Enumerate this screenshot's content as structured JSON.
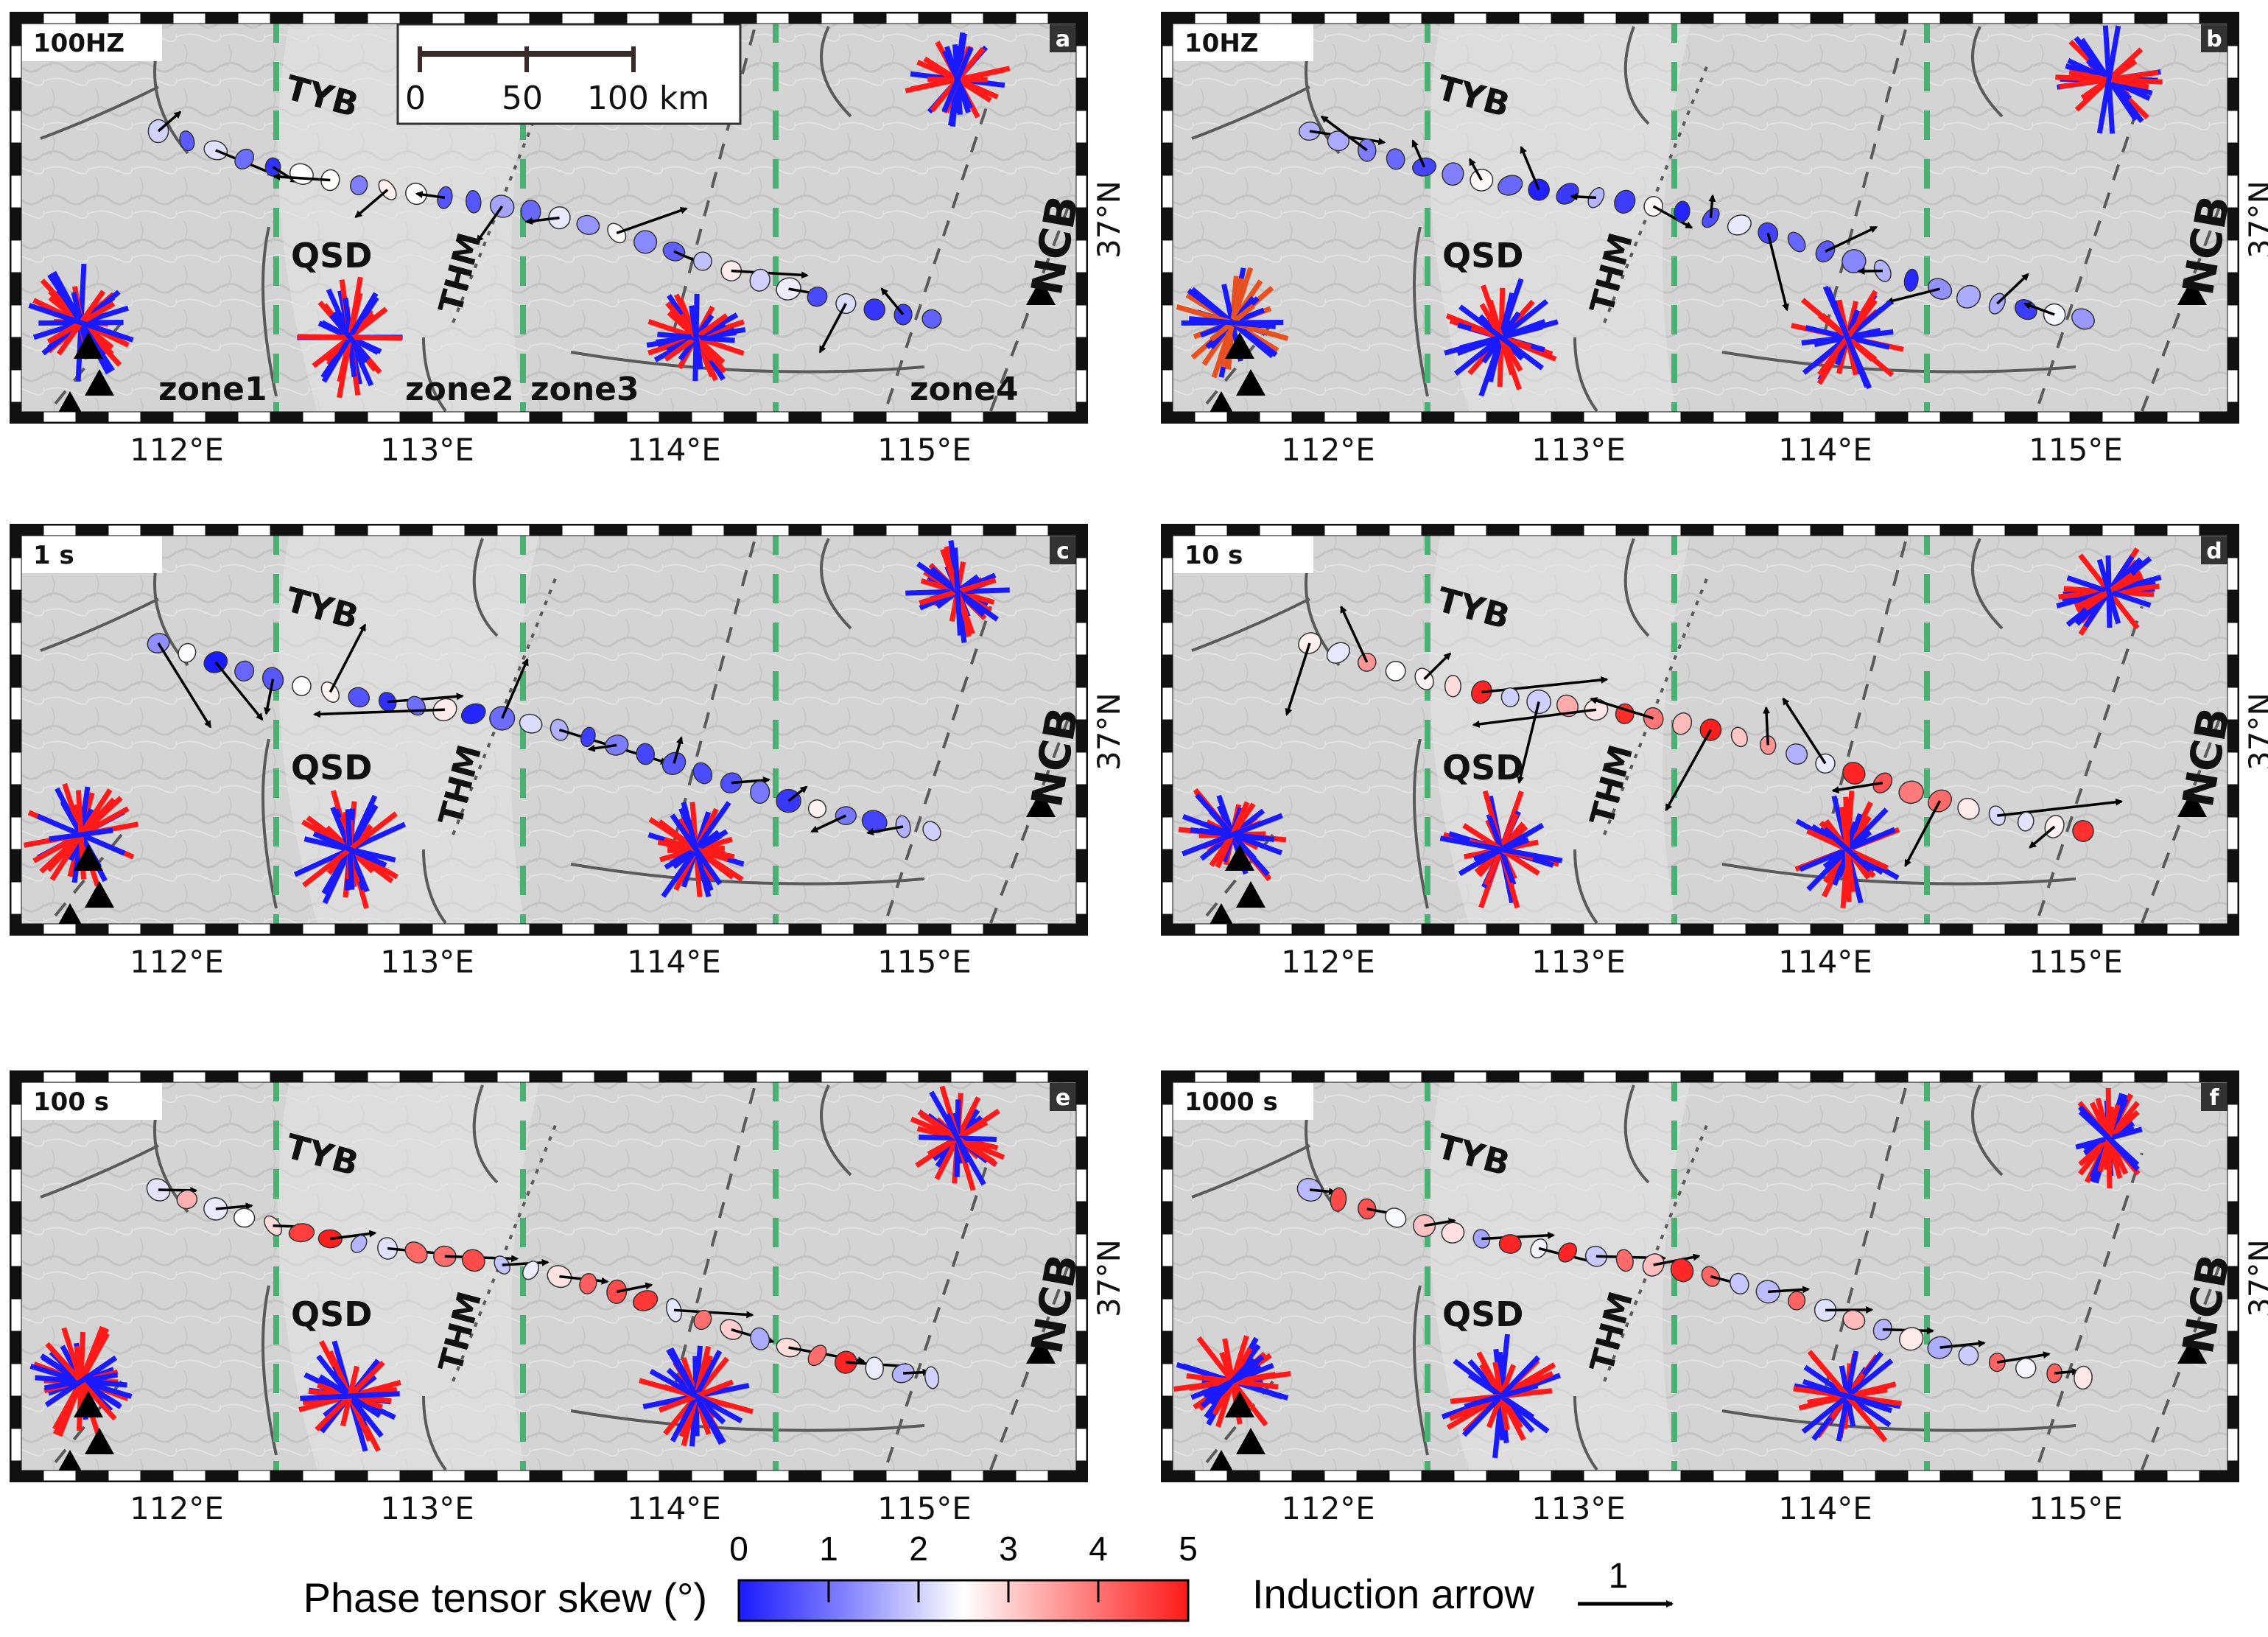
{
  "colors": {
    "map_bg": "#d6d6d6",
    "zone_line": "#4caf74",
    "fault": "#5a5a5a",
    "skew_low": "#1a1aff",
    "skew_mid": "#ffffff",
    "skew_high": "#ff1a1a",
    "frame_dark": "#111111",
    "frame_light": "#ffffff"
  },
  "axes": {
    "lon_ticks": [
      "112°E",
      "113°E",
      "114°E",
      "115°E"
    ],
    "lat_tick": "37°N"
  },
  "labels": {
    "basin_tyb": "TYB",
    "basin_qsd": "QSD",
    "thm": "THM",
    "ncb": "NCB"
  },
  "zones": [
    "zone1",
    "zone2",
    "zone3",
    "zone4"
  ],
  "scale_bar": {
    "ticks": [
      "0",
      "50",
      "100 km"
    ]
  },
  "panels": [
    {
      "id": "a",
      "period": "100HZ"
    },
    {
      "id": "b",
      "period": "10HZ"
    },
    {
      "id": "c",
      "period": "1 s"
    },
    {
      "id": "d",
      "period": "10 s"
    },
    {
      "id": "e",
      "period": "100 s"
    },
    {
      "id": "f",
      "period": "1000 s"
    }
  ],
  "colorbar": {
    "label": "Phase tensor skew (°)",
    "ticks": [
      "0",
      "1",
      "2",
      "3",
      "4",
      "5"
    ],
    "range": [
      0,
      5
    ]
  },
  "induction_legend": {
    "label": "Induction arrow",
    "value": "1"
  }
}
